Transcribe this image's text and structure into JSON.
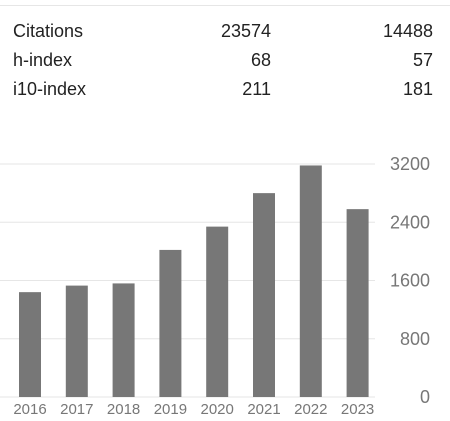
{
  "stats": {
    "rows": [
      {
        "label": "Citations",
        "all": "23574",
        "since": "14488"
      },
      {
        "label": "h-index",
        "all": "68",
        "since": "57"
      },
      {
        "label": "i10-index",
        "all": "211",
        "since": "181"
      }
    ]
  },
  "chart_data": {
    "type": "bar",
    "categories": [
      "2016",
      "2017",
      "2018",
      "2019",
      "2020",
      "2021",
      "2022",
      "2023"
    ],
    "values": [
      1440,
      1530,
      1560,
      2020,
      2340,
      2800,
      3180,
      2580
    ],
    "ylim": [
      0,
      3200
    ],
    "yticks": [
      0,
      800,
      1600,
      2400,
      3200
    ],
    "ytick_labels": [
      "0",
      "800",
      "1600",
      "2400",
      "3200"
    ],
    "grid": true,
    "bar_color": "#777777",
    "grid_color": "#e6e6e6"
  }
}
